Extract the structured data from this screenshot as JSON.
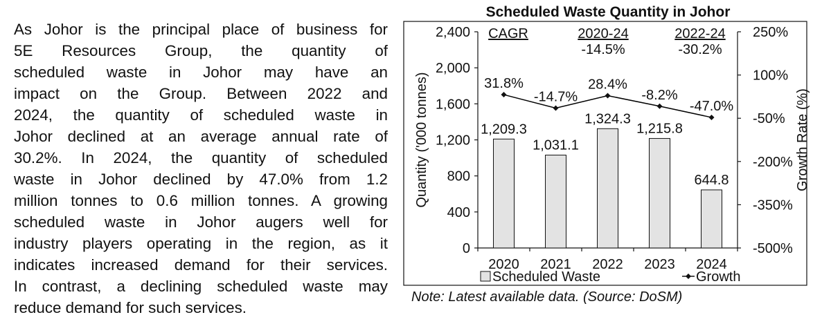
{
  "paragraph": {
    "lines": [
      "As Johor is the principal place of business for",
      "5E Resources Group, the quantity of",
      "scheduled waste in Johor may have an",
      "impact on the Group. Between 2022 and",
      "2024, the quantity of scheduled waste in",
      "Johor declined at an average annual rate of",
      "30.2%. In 2024, the quantity of scheduled",
      "waste in Johor declined by 47.0% from 1.2",
      "million tonnes to 0.6 million tonnes. A growing",
      "scheduled waste in Johor augers well for",
      "industry players operating in the region, as it",
      "indicates increased demand for their services.",
      "In contrast, a declining scheduled waste may",
      "reduce demand for such services."
    ]
  },
  "chart_data": {
    "type": "bar",
    "title": "Scheduled Waste Quantity in Johor",
    "categories": [
      "2020",
      "2021",
      "2022",
      "2023",
      "2024"
    ],
    "series": [
      {
        "name": "Scheduled Waste",
        "type": "bar",
        "values": [
          1209.3,
          1031.1,
          1324.3,
          1215.8,
          644.8
        ],
        "labels": [
          "1,209.3",
          "1,031.1",
          "1,324.3",
          "1,215.8",
          "644.8"
        ]
      },
      {
        "name": "Growth",
        "type": "line",
        "values": [
          31.8,
          -14.7,
          28.4,
          -8.2,
          -47.0
        ],
        "labels": [
          "31.8%",
          "-14.7%",
          "28.4%",
          "-8.2%",
          "-47.0%"
        ]
      }
    ],
    "ylabel": "Quantity ('000 tonnes)",
    "y2label": "Growth Rate (%)",
    "ylim": [
      0,
      2400
    ],
    "yticks": [
      0,
      400,
      800,
      1200,
      1600,
      2000,
      2400
    ],
    "ytick_labels": [
      "0",
      "400",
      "800",
      "1,200",
      "1,600",
      "2,000",
      "2,400"
    ],
    "y2lim": [
      -500,
      250
    ],
    "y2ticks": [
      -500,
      -350,
      -200,
      -50,
      100,
      250
    ],
    "y2tick_labels": [
      "-500%",
      "-350%",
      "-200%",
      "-50%",
      "100%",
      "250%"
    ],
    "legend": "bottom",
    "cagr": {
      "label": "CAGR",
      "periods": [
        {
          "period": "2020-24",
          "value": "-14.5%"
        },
        {
          "period": "2022-24",
          "value": "-30.2%"
        }
      ]
    },
    "colors": {
      "bar_fill": "#e3e3e3",
      "line": "#000000"
    }
  },
  "note": "Note: Latest available data. (Source: DoSM)"
}
